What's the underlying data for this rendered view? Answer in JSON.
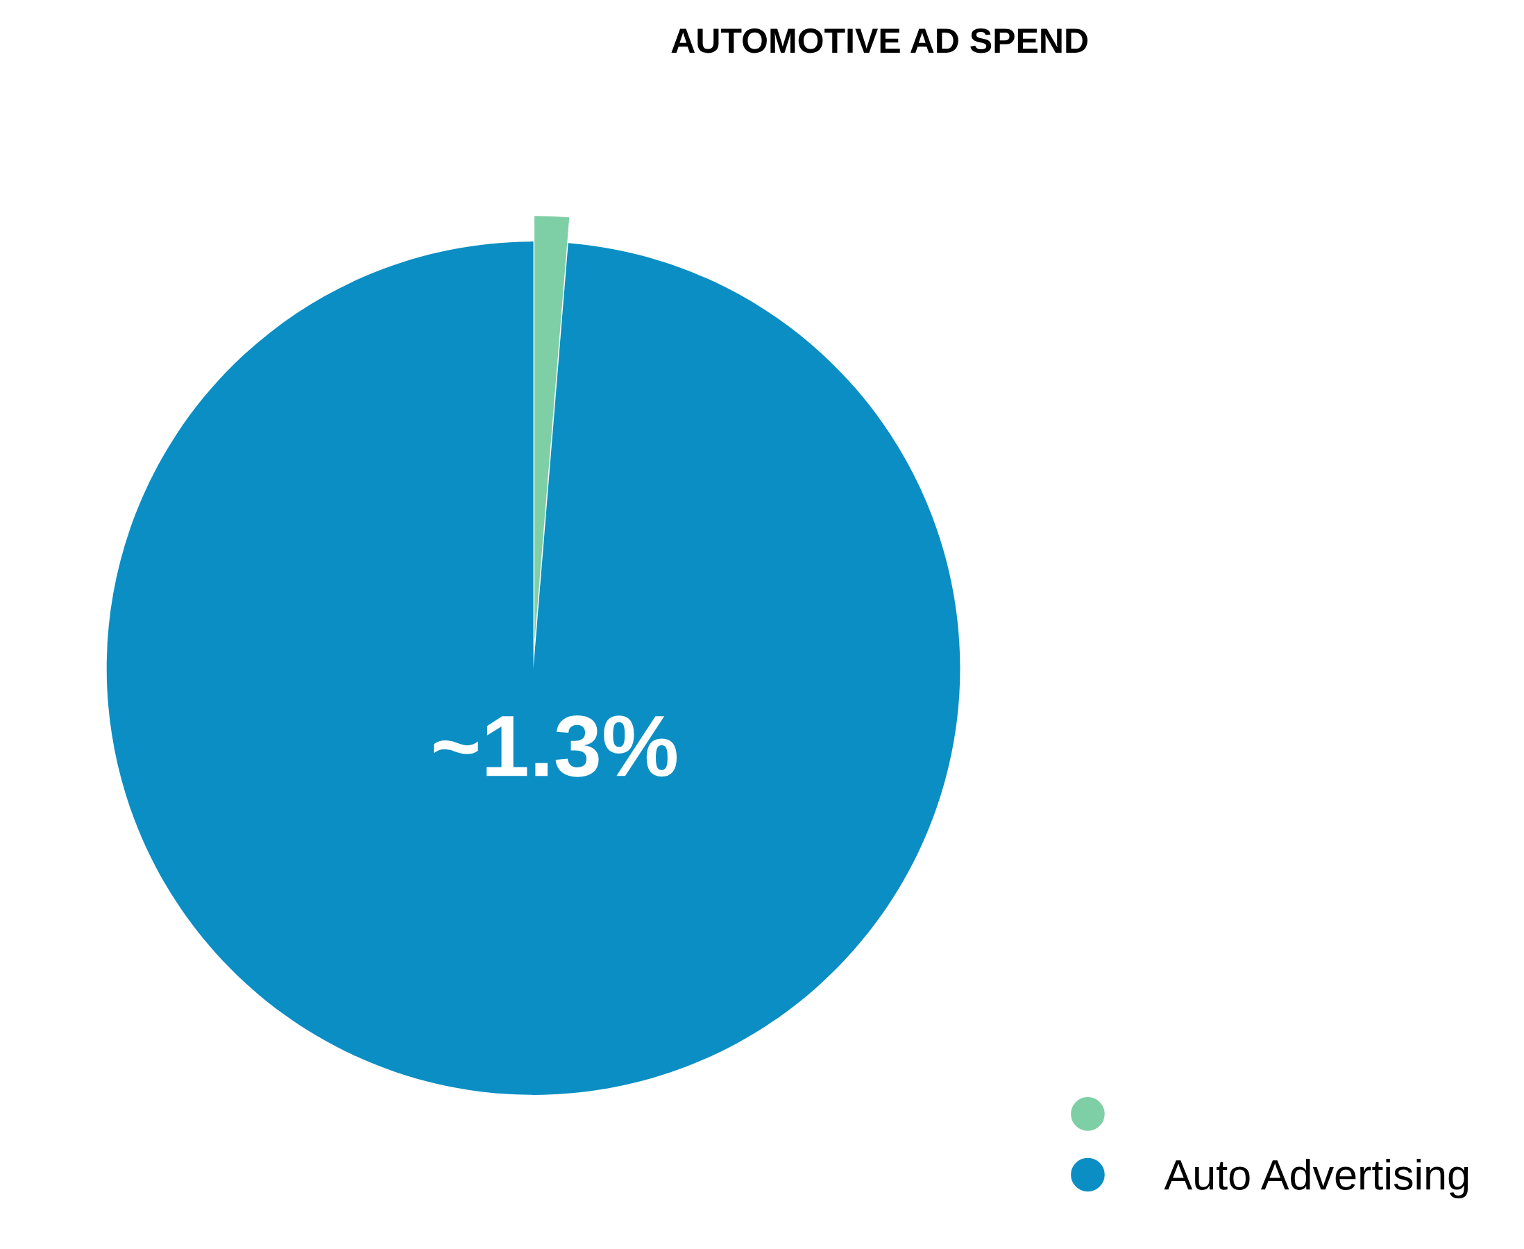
{
  "chart_data": {
    "type": "pie",
    "title": "AUTOMOTIVE AD SPEND",
    "categories": [
      null,
      "Auto Advertising"
    ],
    "values": [
      1.3,
      98.7
    ],
    "colors": [
      "#7fcfa6",
      "#0b8ec4"
    ],
    "annotations": [
      "~1.3%"
    ],
    "legend": "bottom right"
  }
}
